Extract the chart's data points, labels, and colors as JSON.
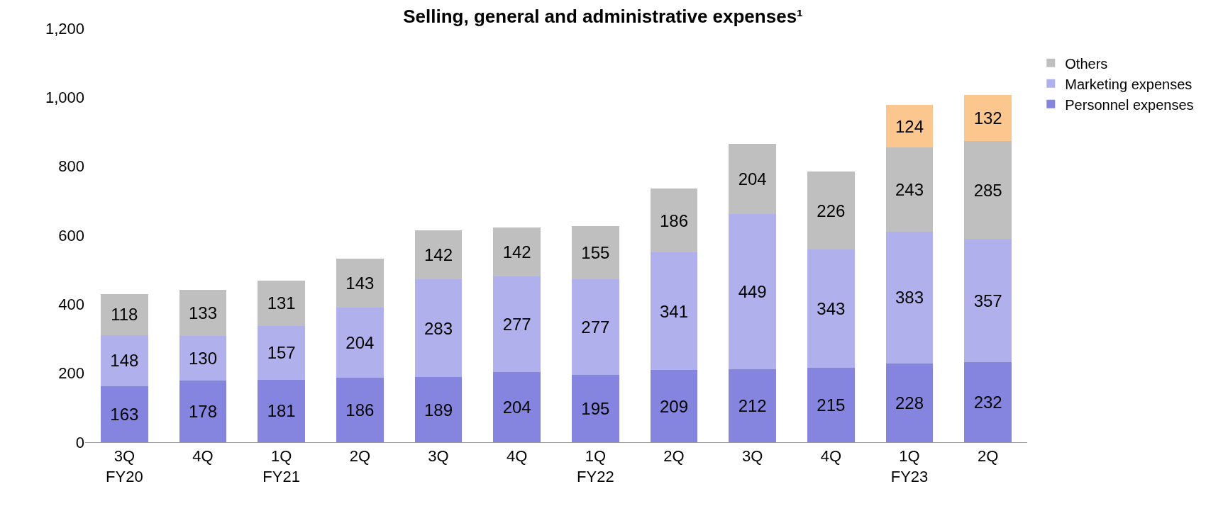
{
  "chart_data": {
    "type": "bar",
    "title": "Selling, general and administrative expenses¹",
    "categories": [
      "3Q\nFY20",
      "4Q",
      "1Q\nFY21",
      "2Q",
      "3Q",
      "4Q",
      "1Q\nFY22",
      "2Q",
      "3Q",
      "4Q",
      "1Q\nFY23",
      "2Q"
    ],
    "series": [
      {
        "name": "Personnel expenses",
        "color": "#8585e0",
        "values": [
          163,
          178,
          181,
          186,
          189,
          204,
          195,
          209,
          212,
          215,
          228,
          232
        ]
      },
      {
        "name": "Marketing expenses",
        "color": "#b0b0ec",
        "values": [
          148,
          130,
          157,
          204,
          283,
          277,
          277,
          341,
          449,
          343,
          383,
          357
        ]
      },
      {
        "name": "Others",
        "color": "#bfbfbf",
        "values": [
          118,
          133,
          131,
          143,
          142,
          142,
          155,
          186,
          204,
          226,
          243,
          285
        ]
      },
      {
        "color": "#fcc68f",
        "values": [
          null,
          null,
          null,
          null,
          null,
          null,
          null,
          null,
          null,
          null,
          124,
          132
        ]
      }
    ],
    "stacked": true,
    "data_labels": true,
    "ylim": [
      0,
      1200
    ],
    "yticks": [
      0,
      200,
      400,
      600,
      800,
      {
        "value": 1000,
        "label": "1,000"
      },
      {
        "value": 1200,
        "label": "1,200"
      }
    ],
    "legend": "right"
  }
}
